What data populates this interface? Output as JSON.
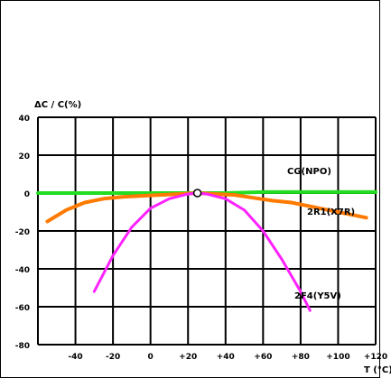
{
  "chart_data": {
    "type": "line",
    "ylabel": "ΔC / C(%)",
    "xlabel": "T (°C)",
    "xlim": [
      -60,
      120
    ],
    "ylim": [
      -80,
      40
    ],
    "xticks": [
      -40,
      -20,
      0,
      20,
      40,
      60,
      80,
      100,
      120
    ],
    "xtick_labels": [
      "-40",
      "-20",
      "0",
      "+20",
      "+40",
      "+60",
      "+80",
      "+100",
      "+120"
    ],
    "yticks": [
      40,
      20,
      0,
      -20,
      -40,
      -60,
      -80
    ],
    "ytick_labels": [
      "40",
      "20",
      "0",
      "-20",
      "-40",
      "-60",
      "-80"
    ],
    "grid": true,
    "reference_point": {
      "x": 25,
      "y": 0
    },
    "series": [
      {
        "name": "CG(NPO)",
        "color": "#22dd22",
        "x": [
          -60,
          -40,
          -20,
          0,
          20,
          40,
          60,
          80,
          100,
          120
        ],
        "y": [
          0,
          0,
          0,
          0,
          0,
          0,
          0.5,
          0.5,
          0.5,
          0.5
        ]
      },
      {
        "name": "2R1(X7R)",
        "color": "#ff7a00",
        "x": [
          -55,
          -45,
          -35,
          -25,
          -15,
          -5,
          5,
          15,
          25,
          35,
          45,
          55,
          65,
          75,
          85,
          95,
          105,
          115
        ],
        "y": [
          -15,
          -9,
          -5,
          -3,
          -2,
          -1.5,
          -1,
          -0.5,
          0,
          -0.5,
          -1,
          -2.5,
          -4,
          -5,
          -7,
          -9,
          -11,
          -13
        ]
      },
      {
        "name": "2F4(Y5V)",
        "color": "#ff22ff",
        "x": [
          -30,
          -20,
          -10,
          0,
          10,
          20,
          25,
          30,
          40,
          50,
          60,
          70,
          80,
          85
        ],
        "y": [
          -52,
          -33,
          -18,
          -8,
          -3,
          -0.5,
          0,
          -0.5,
          -3,
          -9,
          -20,
          -35,
          -52,
          -62
        ]
      }
    ]
  }
}
